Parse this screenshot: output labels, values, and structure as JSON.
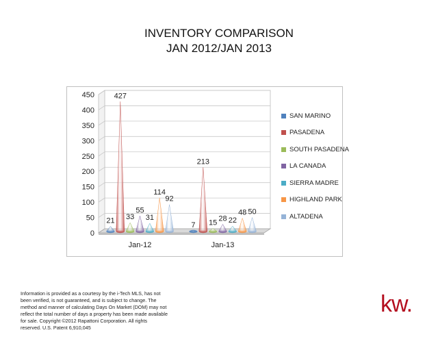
{
  "title_line1": "INVENTORY COMPARISON",
  "title_line2": "JAN 2012/JAN 2013",
  "chart_data": {
    "type": "bar",
    "categories": [
      "Jan-12",
      "Jan-13"
    ],
    "series": [
      {
        "name": "SAN MARINO",
        "values": [
          21,
          7
        ],
        "color": "#4f81bd"
      },
      {
        "name": "PASADENA",
        "values": [
          427,
          213
        ],
        "color": "#c0504d"
      },
      {
        "name": "SOUTH PASADENA",
        "values": [
          33,
          15
        ],
        "color": "#9bbb59"
      },
      {
        "name": "LA CANADA",
        "values": [
          55,
          28
        ],
        "color": "#8064a2"
      },
      {
        "name": "SIERRA MADRE",
        "values": [
          31,
          22
        ],
        "color": "#4bacc6"
      },
      {
        "name": "HIGHLAND PARK",
        "values": [
          114,
          48
        ],
        "color": "#f79646"
      },
      {
        "name": "ALTADENA",
        "values": [
          92,
          50
        ],
        "color": "#95b3d7"
      }
    ],
    "ylim": [
      0,
      450
    ],
    "yticks": [
      0,
      50,
      100,
      150,
      200,
      250,
      300,
      350,
      400,
      450
    ],
    "legend_position": "right",
    "data_labels": true
  },
  "disclaimer_lines": [
    "Information is provided as a courtesy by the i-Tech MLS, has not",
    "been verified, is not guaranteed, and is subject to change. The",
    "method and manner of calculating Days On Market (DOM) may not",
    "reflect the total number of days a property has been made available",
    "for sale. Copyright ©2012 Rapattoni Corporation. All rights",
    "reserved.  U.S. Patent 6,910,045"
  ],
  "logo_text": "kw."
}
